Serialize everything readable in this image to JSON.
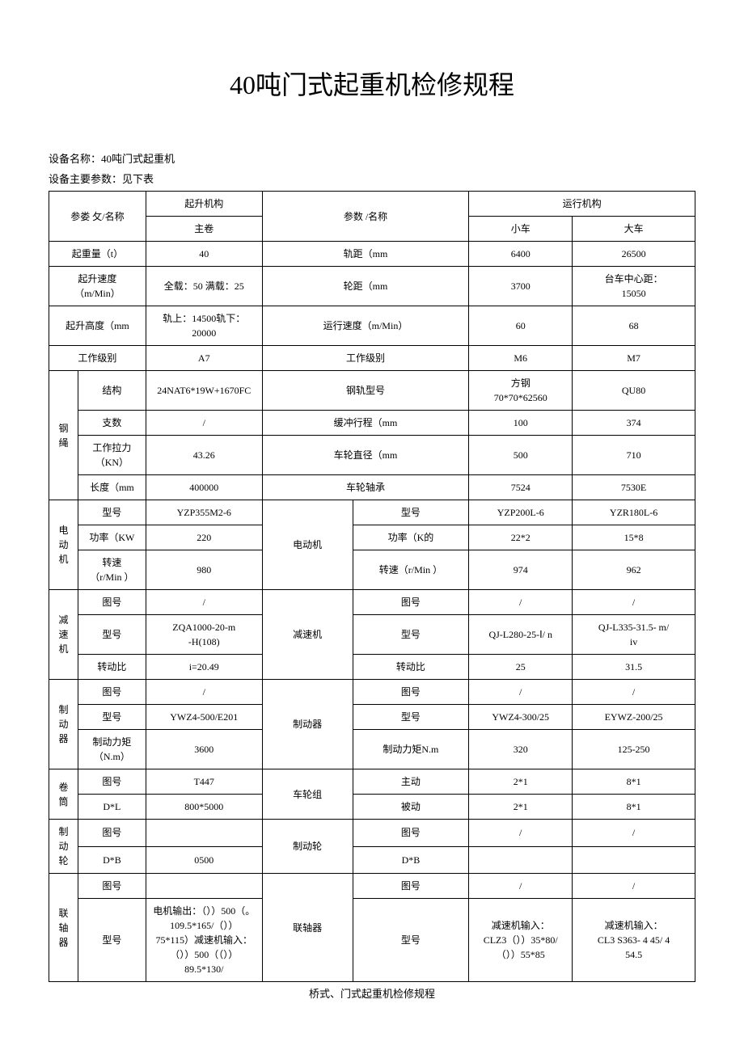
{
  "title": "40吨门式起重机检修规程",
  "meta": {
    "device_name_label": "设备名称：",
    "device_name": "40吨门式起重机",
    "param_label": "设备主要参数：",
    "param_note": "见下表"
  },
  "head": {
    "param_name_left": "参娄  攵/名称",
    "param_name_right": "参数      /名称",
    "lift_mech": "起升机构",
    "main_hoist": "主卷",
    "run_mech": "运行机构",
    "trolley": "小车",
    "bridge": "大车"
  },
  "r_capacity": {
    "l": "起重量（t）",
    "c": "40",
    "r": "轨距（mm",
    "t": "6400",
    "b": "26500"
  },
  "r_lift_speed": {
    "l": "起升速度\n（m/Min）",
    "c": "全载：50 满载：25",
    "r": "轮距（mm",
    "t": "3700",
    "b": "台车中心距：\n15050"
  },
  "r_lift_height": {
    "l": "起升高度（mm",
    "c": "轨上：14500轨下：\n20000",
    "r": "运行速度（m/Min）",
    "t": "60",
    "b": "68"
  },
  "r_work_class": {
    "l": "工作级别",
    "c": "A7",
    "r": "工作级别",
    "t": "M6",
    "b": "M7"
  },
  "g_rope": "钢 绳",
  "r_rope_struct": {
    "l": "结构",
    "c": "24NAT6*19W+1670FC",
    "r": "钢轨型号",
    "t": "方钢\n70*70*62560",
    "b": "QU80"
  },
  "r_rope_count": {
    "l": "支数",
    "c": "/",
    "r": "缓冲行程（mm",
    "t": "100",
    "b": "374"
  },
  "r_rope_force": {
    "l": "工作拉力\n（KN）",
    "c": "43.26",
    "r": "车轮直径（mm",
    "t": "500",
    "b": "710"
  },
  "r_rope_len": {
    "l": "长度（mm",
    "c": "400000",
    "r": "车轮轴承",
    "t": "7524",
    "b": "7530E"
  },
  "g_motor": "电 动\n机",
  "g_motor_r": "电动机",
  "r_motor_model": {
    "l": "型号",
    "c": "YZP355M2-6",
    "r": "型号",
    "t": "YZP200L-6",
    "b": "YZR180L-6"
  },
  "r_motor_power": {
    "l": "功率（KW",
    "c": "220",
    "r": "功率（K的",
    "t": "22*2",
    "b": "15*8"
  },
  "r_motor_speed": {
    "l": "转速\n（r/Min ）",
    "c": "980",
    "r": "转速（r/Min ）",
    "t": "974",
    "b": "962"
  },
  "g_reducer": "减\n速\n机",
  "g_reducer_r": "减速机",
  "r_red_draw": {
    "l": "图号",
    "c": "/",
    "r": "图号",
    "t": "/",
    "b": "/"
  },
  "r_red_model": {
    "l": "型号",
    "c": "ZQA1000-20-m\n-H(108)",
    "r": "型号",
    "t": "QJ-L280-25-Ⅰ/ n",
    "b": "QJ-L335-31.5- m/\niv"
  },
  "r_red_ratio": {
    "l": "转动比",
    "c": "i=20.49",
    "r": "转动比",
    "t": "25",
    "b": "31.5"
  },
  "g_brake": "制\n动\n器",
  "g_brake_r": "制动器",
  "r_brk_draw": {
    "l": "图号",
    "c": "/",
    "r": "图号",
    "t": "/",
    "b": "/"
  },
  "r_brk_model": {
    "l": "型号",
    "c": "YWZ4-500/E201",
    "r": "型号",
    "t": "YWZ4-300/25",
    "b": "EYWZ-200/25"
  },
  "r_brk_torque": {
    "l": "制动力矩\n（N.m）",
    "c": "3600",
    "r": "制动力矩N.m",
    "t": "320",
    "b": "125-250"
  },
  "g_drum": "卷  筒",
  "g_wheel_r": "车轮组",
  "r_drum_draw": {
    "l": "图号",
    "c": "T447",
    "r": "主动",
    "t": "2*1",
    "b": "8*1"
  },
  "r_drum_dl": {
    "l": "D*L",
    "c": "800*5000",
    "r": "被动",
    "t": "2*1",
    "b": "8*1"
  },
  "g_brkwheel": "制\n动\n轮",
  "g_brkwheel_r": "制动轮",
  "r_bw_draw": {
    "l": "图号",
    "c": "",
    "r": "图号",
    "t": "/",
    "b": "/"
  },
  "r_bw_db": {
    "l": "D*B",
    "c": "0500",
    "r": "D*B",
    "t": "",
    "b": ""
  },
  "g_coupling": "联\n轴\n器",
  "g_coupling_r": "联轴器",
  "r_cpl_draw": {
    "l": "图号",
    "c": "",
    "r": "图号",
    "t": "/",
    "b": "/"
  },
  "r_cpl_model": {
    "l": "型号",
    "c": "电机输出：（））500（。\n109.5*165/（））\n75*115）减速机输入：\n（））500（（））\n89.5*130/",
    "r": "型号",
    "t": "减速机输入：\nCLZ3（））35*80/\n（））55*85",
    "b": "减速机输入：\nCL3 S363- 4 45/ 4\n54.5"
  },
  "footer": "桥式、门式起重机检修规程"
}
